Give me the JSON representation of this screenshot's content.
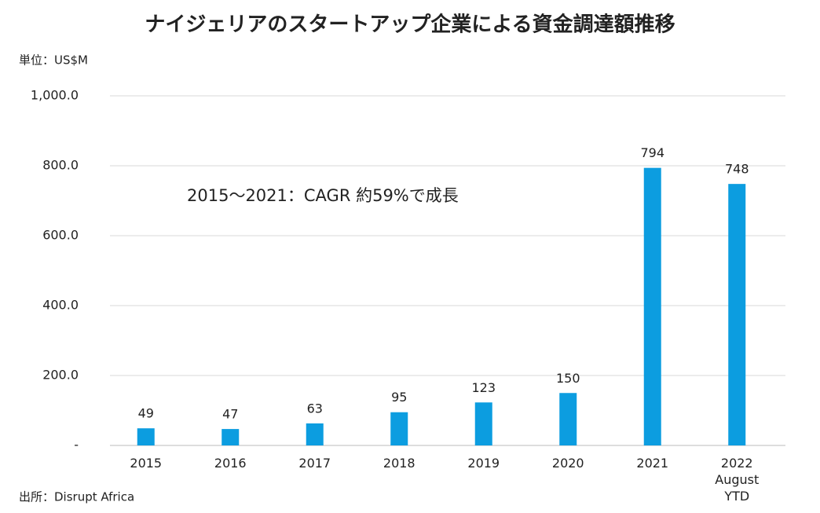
{
  "chart_data": {
    "type": "bar",
    "title": "ナイジェリアのスタートアップ企業による資金調達額推移",
    "unit_label": "単位：US$M",
    "annotation": "2015～2021：CAGR 約59%で成長",
    "source": "出所：Disrupt Africa",
    "categories": [
      "2015",
      "2016",
      "2017",
      "2018",
      "2019",
      "2020",
      "2021",
      "2022\nAugust\nYTD"
    ],
    "values": [
      49,
      47,
      63,
      95,
      123,
      150,
      794,
      748
    ],
    "color": "#0c9de0",
    "ylim": [
      0,
      1000
    ],
    "yticks": [
      {
        "value": 0,
        "label": "-"
      },
      {
        "value": 200,
        "label": "200.0"
      },
      {
        "value": 400,
        "label": "400.0"
      },
      {
        "value": 600,
        "label": "600.0"
      },
      {
        "value": 800,
        "label": "800.0"
      },
      {
        "value": 1000,
        "label": "1,000.0"
      }
    ],
    "grid": true
  }
}
